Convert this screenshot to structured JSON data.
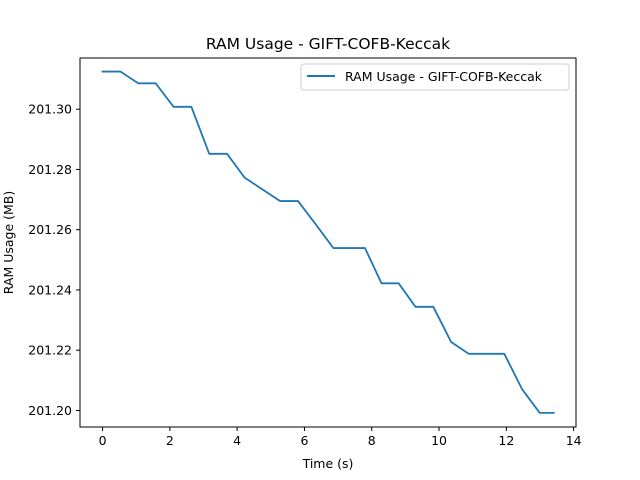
{
  "chart_data": {
    "type": "line",
    "title": "RAM Usage - GIFT-COFB-Keccak",
    "xlabel": "Time (s)",
    "ylabel": "RAM Usage (MB)",
    "xlim": [
      -0.67,
      14.07
    ],
    "ylim": [
      201.1945,
      201.317
    ],
    "xticks": [
      0,
      2,
      4,
      6,
      8,
      10,
      12,
      14
    ],
    "xtick_labels": [
      "0",
      "2",
      "4",
      "6",
      "8",
      "10",
      "12",
      "14"
    ],
    "yticks": [
      201.2,
      201.22,
      201.24,
      201.26,
      201.28,
      201.3
    ],
    "ytick_labels": [
      "201.20",
      "201.22",
      "201.24",
      "201.26",
      "201.28",
      "201.30"
    ],
    "grid": false,
    "legend_position": "top-right",
    "series": [
      {
        "name": "RAM Usage - GIFT-COFB-Keccak",
        "color": "#1f77b4",
        "x": [
          0.0,
          0.53,
          1.06,
          1.58,
          2.11,
          2.64,
          3.17,
          3.7,
          4.22,
          4.75,
          5.28,
          5.81,
          6.34,
          6.86,
          7.39,
          7.8,
          8.29,
          8.8,
          9.3,
          9.83,
          10.36,
          10.88,
          11.41,
          11.94,
          12.47,
          12.99,
          13.41
        ],
        "y": [
          201.3125,
          201.3125,
          201.3086,
          201.3086,
          201.3008,
          201.3008,
          201.2852,
          201.2852,
          201.2773,
          201.2734,
          201.2695,
          201.2695,
          201.2617,
          201.2539,
          201.2539,
          201.2539,
          201.2422,
          201.2422,
          201.2344,
          201.2344,
          201.2227,
          201.2188,
          201.2188,
          201.2188,
          201.207,
          201.1992,
          201.1992
        ]
      }
    ]
  }
}
